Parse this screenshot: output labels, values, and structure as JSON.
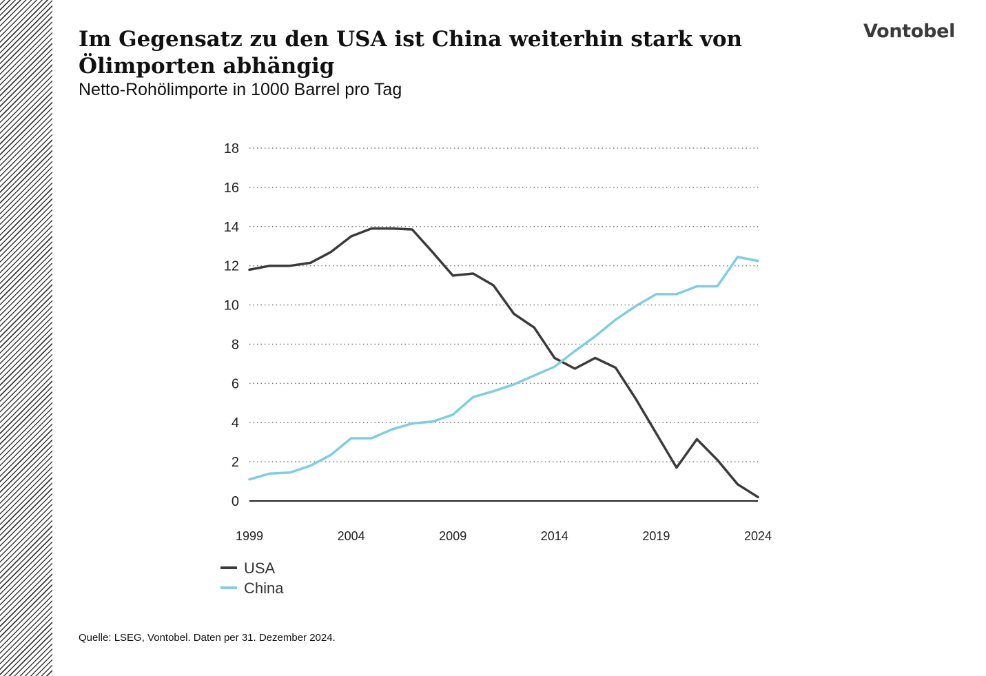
{
  "header": {
    "title": "Im Gegensatz zu den USA ist China weiterhin stark von Ölimporten abhängig",
    "subtitle": "Netto-Rohölimporte in 1000 Barrel pro Tag",
    "logo": "Vontobel"
  },
  "footer": {
    "source": "Quelle: LSEG, Vontobel. Daten per 31. Dezember 2024."
  },
  "colors": {
    "usa": "#3a3a3a",
    "china": "#7dcde3",
    "grid": "#777777",
    "axis": "#222222"
  },
  "chart_data": {
    "type": "line",
    "title": "Im Gegensatz zu den USA ist China weiterhin stark von Ölimporten abhängig",
    "subtitle": "Netto-Rohölimporte in 1000 Barrel pro Tag",
    "xlabel": "",
    "ylabel": "",
    "xlim": [
      1999,
      2025
    ],
    "ylim": [
      0,
      18
    ],
    "y_ticks": [
      0,
      2,
      4,
      6,
      8,
      10,
      12,
      14,
      16,
      18
    ],
    "y_tick_labels": [
      "0",
      "2",
      "4",
      "6",
      "8",
      "10",
      "12",
      "14",
      "16",
      "18"
    ],
    "x_ticks": [
      1999,
      2004,
      2009,
      2014,
      2019,
      2024
    ],
    "x_tick_labels": [
      "1999",
      "2004",
      "2009",
      "2014",
      "2019",
      "2024"
    ],
    "grid": "horizontal dotted",
    "legend_position": "bottom-left",
    "x": [
      1999,
      2000,
      2001,
      2002,
      2003,
      2004,
      2005,
      2006,
      2007,
      2008,
      2009,
      2010,
      2011,
      2012,
      2013,
      2014,
      2015,
      2016,
      2017,
      2018,
      2019,
      2020,
      2021,
      2022,
      2023,
      2024
    ],
    "series": [
      {
        "name": "USA",
        "color": "#3a3a3a",
        "values": [
          11.8,
          12.0,
          12.0,
          12.15,
          12.7,
          13.5,
          13.9,
          13.9,
          13.85,
          12.7,
          11.5,
          11.6,
          11.0,
          9.55,
          8.85,
          7.3,
          6.75,
          7.3,
          6.8,
          5.2,
          3.45,
          1.7,
          3.15,
          2.1,
          0.85,
          0.2
        ]
      },
      {
        "name": "China",
        "color": "#7dcde3",
        "values": [
          1.1,
          1.4,
          1.45,
          1.8,
          2.35,
          3.2,
          3.2,
          3.65,
          3.95,
          4.05,
          4.4,
          5.3,
          5.6,
          5.95,
          6.4,
          6.85,
          7.65,
          8.4,
          9.25,
          9.95,
          10.55,
          10.55,
          10.95,
          10.95,
          12.45,
          12.25
        ]
      }
    ]
  }
}
